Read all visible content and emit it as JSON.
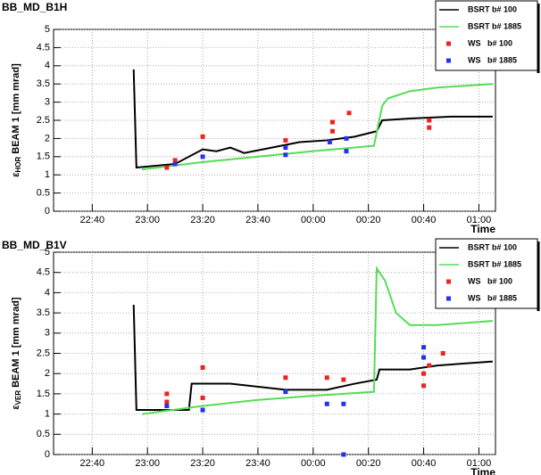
{
  "chart_data": [
    {
      "type": "line",
      "title": "BB_MD_B1H",
      "ylabel_symbol": "ε",
      "ylabel_sub": "HOR",
      "ylabel_rest": "BEAM 1 [mm mrad]",
      "xlabel": "Time",
      "xlim": [
        "22:26",
        "01:06"
      ],
      "xticks": [
        "22:40",
        "23:00",
        "23:20",
        "23:40",
        "00:00",
        "00:20",
        "00:40",
        "01:00"
      ],
      "ylim": [
        0,
        5
      ],
      "yticks": [
        0,
        0.5,
        1,
        1.5,
        2,
        2.5,
        3,
        3.5,
        4,
        4.5,
        5
      ],
      "grid": true,
      "series": [
        {
          "name": "BSRT b# 100",
          "color": "#000000",
          "style": "line",
          "x": [
            "22:55",
            "22:56",
            "23:10",
            "23:20",
            "23:25",
            "23:30",
            "23:35",
            "23:45",
            "23:55",
            "00:05",
            "00:15",
            "00:23",
            "00:25",
            "00:35",
            "00:50",
            "01:05"
          ],
          "values": [
            3.9,
            1.2,
            1.3,
            1.7,
            1.65,
            1.75,
            1.6,
            1.75,
            1.9,
            1.95,
            2.05,
            2.2,
            2.5,
            2.55,
            2.6,
            2.6
          ]
        },
        {
          "name": "BSRT b# 1885",
          "color": "#55dd55",
          "style": "line",
          "x": [
            "22:58",
            "23:20",
            "23:40",
            "00:00",
            "00:22",
            "00:25",
            "00:27",
            "00:35",
            "00:45",
            "01:05"
          ],
          "values": [
            1.15,
            1.35,
            1.5,
            1.65,
            1.8,
            2.9,
            3.1,
            3.3,
            3.4,
            3.5
          ]
        },
        {
          "name": "WS   b# 100",
          "color": "#ee2222",
          "style": "marker",
          "x": [
            "23:07",
            "23:10",
            "23:20",
            "23:50",
            "00:07",
            "00:07",
            "00:13",
            "00:42",
            "00:42"
          ],
          "values": [
            1.2,
            1.4,
            2.05,
            1.95,
            2.45,
            2.2,
            2.7,
            2.3,
            2.5
          ]
        },
        {
          "name": "WS   b# 1885",
          "color": "#2233ee",
          "style": "marker",
          "x": [
            "23:10",
            "23:20",
            "23:50",
            "23:50",
            "00:06",
            "00:12",
            "00:12"
          ],
          "values": [
            1.3,
            1.5,
            1.55,
            1.75,
            1.9,
            1.65,
            2.0
          ]
        }
      ]
    },
    {
      "type": "line",
      "title": "BB_MD_B1V",
      "ylabel_symbol": "ε",
      "ylabel_sub": "VER",
      "ylabel_rest": "BEAM 1 [mm mrad]",
      "xlabel": "Time",
      "xlim": [
        "22:26",
        "01:06"
      ],
      "xticks": [
        "22:40",
        "23:00",
        "23:20",
        "23:40",
        "00:00",
        "00:20",
        "00:40",
        "01:00"
      ],
      "ylim": [
        0,
        5
      ],
      "yticks": [
        0,
        0.5,
        1,
        1.5,
        2,
        2.5,
        3,
        3.5,
        4,
        4.5,
        5
      ],
      "grid": true,
      "series": [
        {
          "name": "BSRT b# 100",
          "color": "#000000",
          "style": "line",
          "x": [
            "22:55",
            "22:56",
            "23:15",
            "23:16",
            "23:30",
            "23:50",
            "00:05",
            "00:15",
            "00:23",
            "00:24",
            "00:35",
            "00:45",
            "01:05"
          ],
          "values": [
            3.7,
            1.1,
            1.1,
            1.75,
            1.75,
            1.6,
            1.6,
            1.75,
            1.85,
            2.1,
            2.1,
            2.2,
            2.3
          ]
        },
        {
          "name": "BSRT b# 1885",
          "color": "#55dd55",
          "style": "line",
          "x": [
            "22:58",
            "23:20",
            "23:40",
            "00:00",
            "00:22",
            "00:23",
            "00:26",
            "00:30",
            "00:35",
            "00:45",
            "01:05"
          ],
          "values": [
            1.0,
            1.2,
            1.35,
            1.45,
            1.55,
            4.6,
            4.3,
            3.5,
            3.2,
            3.2,
            3.3
          ]
        },
        {
          "name": "WS   b# 100",
          "color": "#ee2222",
          "style": "marker",
          "x": [
            "23:07",
            "23:07",
            "23:20",
            "23:20",
            "23:50",
            "00:05",
            "00:11",
            "00:40",
            "00:40",
            "00:42",
            "00:47"
          ],
          "values": [
            1.5,
            1.3,
            2.15,
            1.4,
            1.9,
            1.9,
            1.85,
            2.0,
            1.7,
            2.2,
            2.5
          ]
        },
        {
          "name": "WS   b# 1885",
          "color": "#2233ee",
          "style": "marker",
          "x": [
            "23:07",
            "23:20",
            "23:50",
            "00:05",
            "00:11",
            "00:11",
            "00:40",
            "00:40"
          ],
          "values": [
            1.2,
            1.1,
            1.55,
            1.25,
            1.25,
            0.0,
            2.65,
            2.4
          ]
        }
      ]
    }
  ]
}
